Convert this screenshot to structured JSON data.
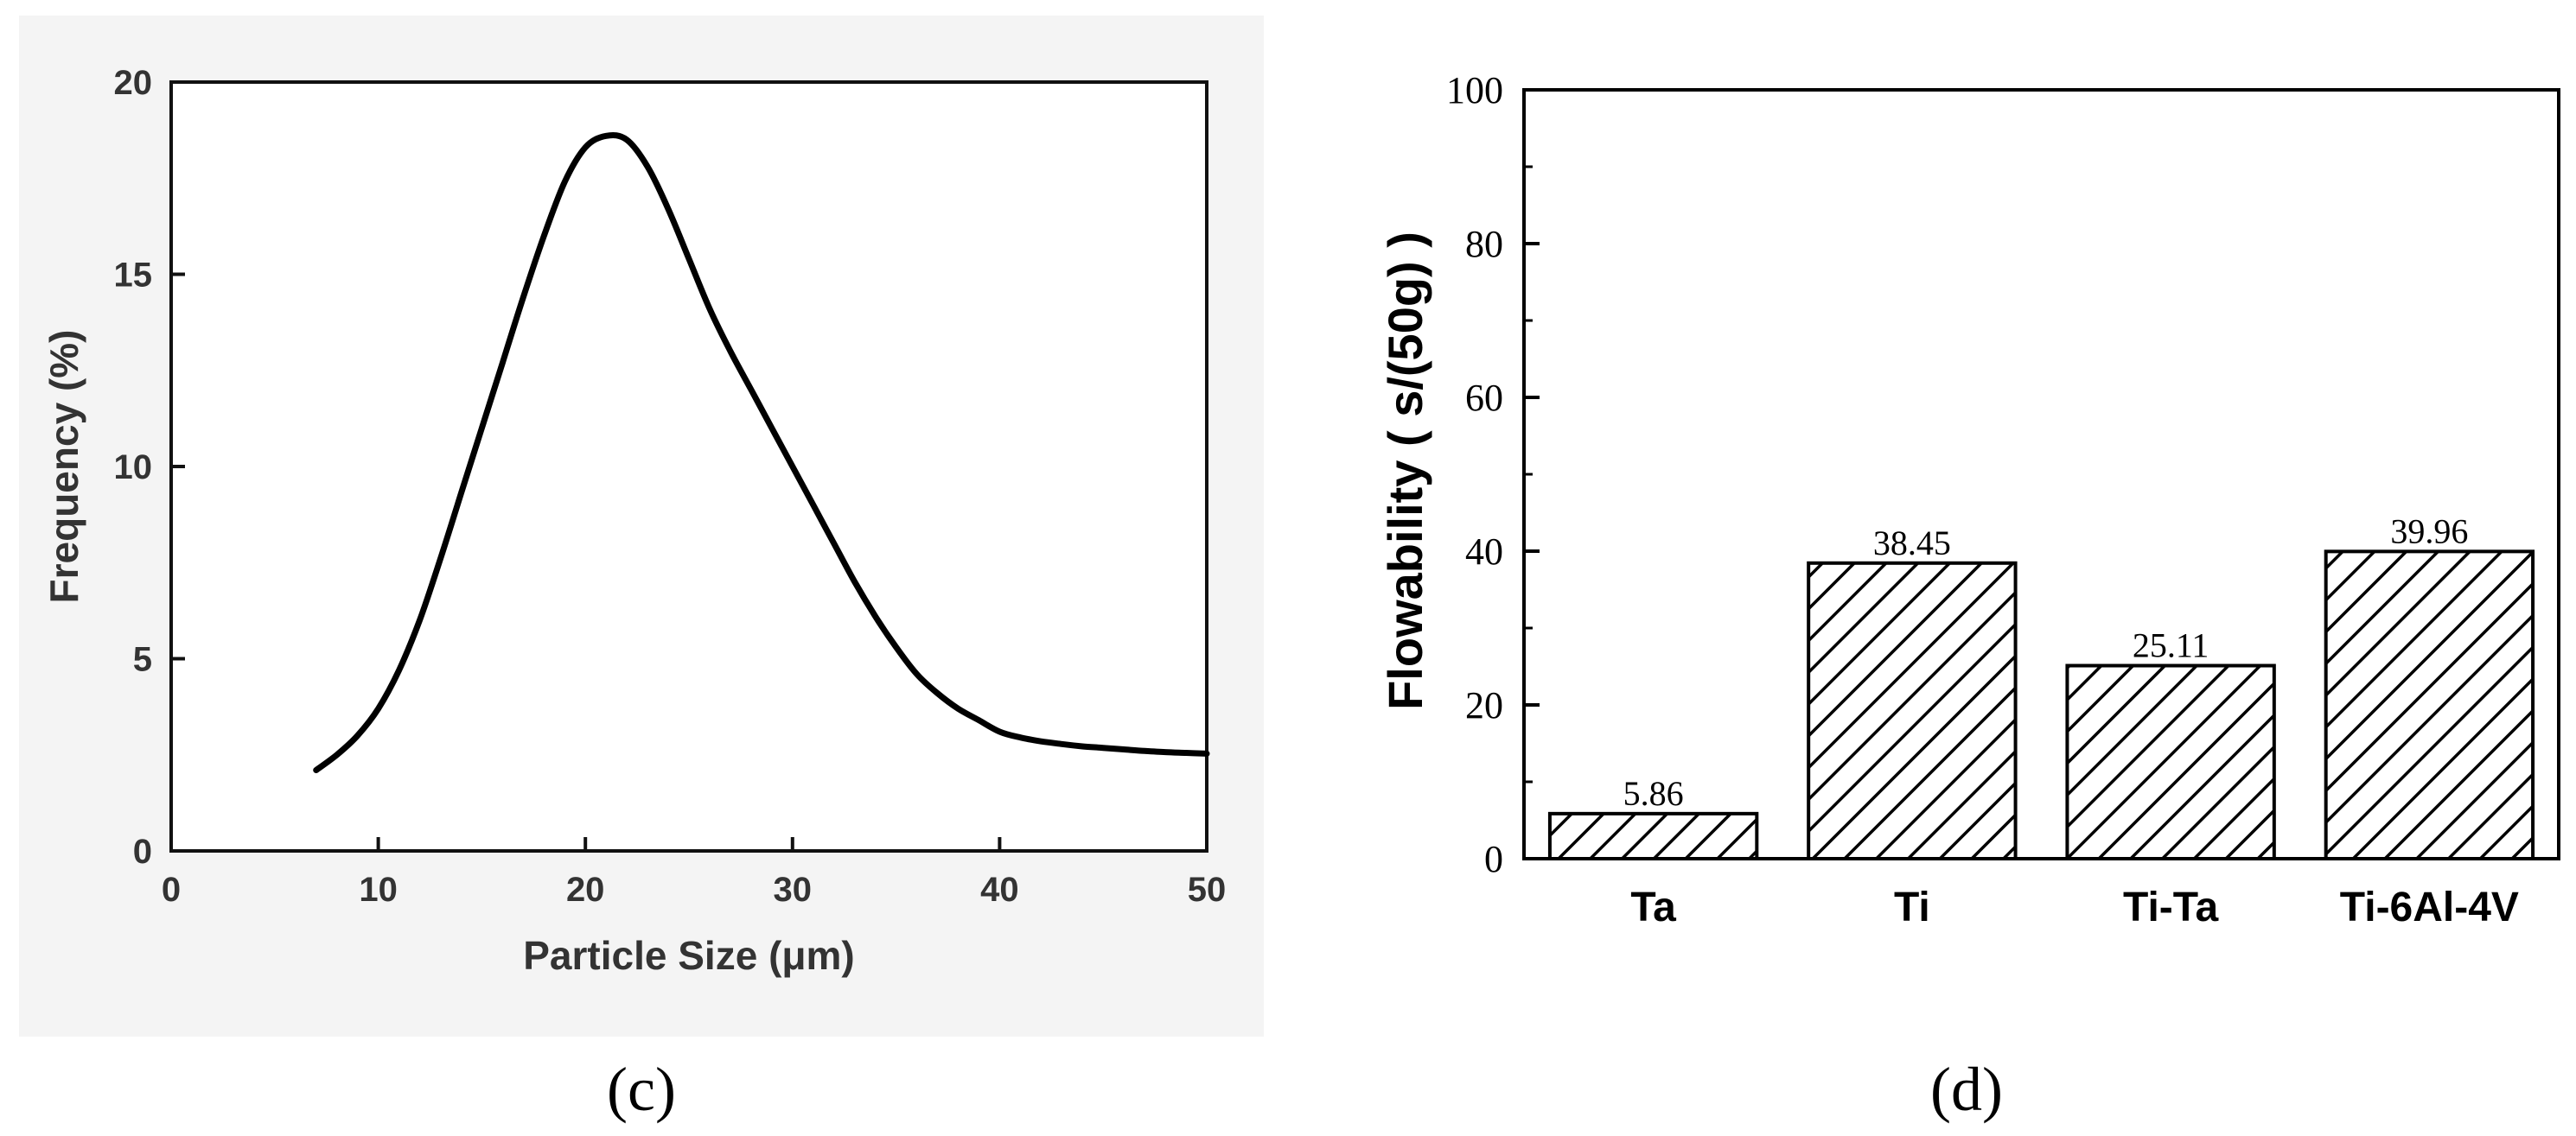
{
  "chart_data": [
    {
      "panel": "(c)",
      "type": "line",
      "title": "",
      "xlabel": "Particle Size (μm)",
      "ylabel": "Frequency (%)",
      "xlim": [
        0,
        50
      ],
      "ylim": [
        0,
        20
      ],
      "xticks": [
        0,
        10,
        20,
        30,
        40,
        50
      ],
      "yticks": [
        0,
        5,
        10,
        15,
        20
      ],
      "grid": false,
      "series": [
        {
          "name": "Frequency",
          "x": [
            7,
            8,
            9,
            10,
            11,
            12,
            13,
            14,
            15,
            16,
            17,
            18,
            19,
            20,
            21,
            22,
            23,
            24,
            25,
            26,
            27,
            28,
            29,
            30,
            31,
            32,
            33,
            34,
            35,
            36,
            37,
            38,
            39,
            40,
            41,
            42,
            43,
            44,
            45,
            46,
            47,
            48,
            49,
            50
          ],
          "y": [
            2.1,
            2.5,
            3.0,
            3.7,
            4.7,
            6.0,
            7.6,
            9.3,
            11.0,
            12.7,
            14.4,
            16.0,
            17.4,
            18.3,
            18.6,
            18.5,
            17.8,
            16.7,
            15.4,
            14.1,
            13.0,
            12.0,
            11.0,
            10.0,
            9.0,
            8.0,
            7.0,
            6.1,
            5.3,
            4.6,
            4.1,
            3.7,
            3.4,
            3.1,
            2.95,
            2.85,
            2.78,
            2.72,
            2.68,
            2.64,
            2.6,
            2.57,
            2.55,
            2.53
          ]
        }
      ]
    },
    {
      "panel": "(d)",
      "type": "bar",
      "title": "",
      "xlabel": "",
      "ylabel": "Flowability ( s/(50g) )",
      "ylim": [
        0,
        100
      ],
      "yticks": [
        0,
        20,
        40,
        60,
        80,
        100
      ],
      "categories": [
        "Ta",
        "Ti",
        "Ti-Ta",
        "Ti-6Al-4V"
      ],
      "values": [
        5.86,
        38.45,
        25.11,
        39.96
      ],
      "value_labels": [
        "5.86",
        "38.45",
        "25.11",
        "39.96"
      ],
      "fill": "hatched",
      "grid": false
    }
  ],
  "panel_labels": [
    "(c)",
    "(d)"
  ],
  "colors": {
    "curve": "#000000",
    "frame_c": "#111111",
    "bg_c": "#f4f4f4",
    "bar_stroke": "#000000"
  }
}
